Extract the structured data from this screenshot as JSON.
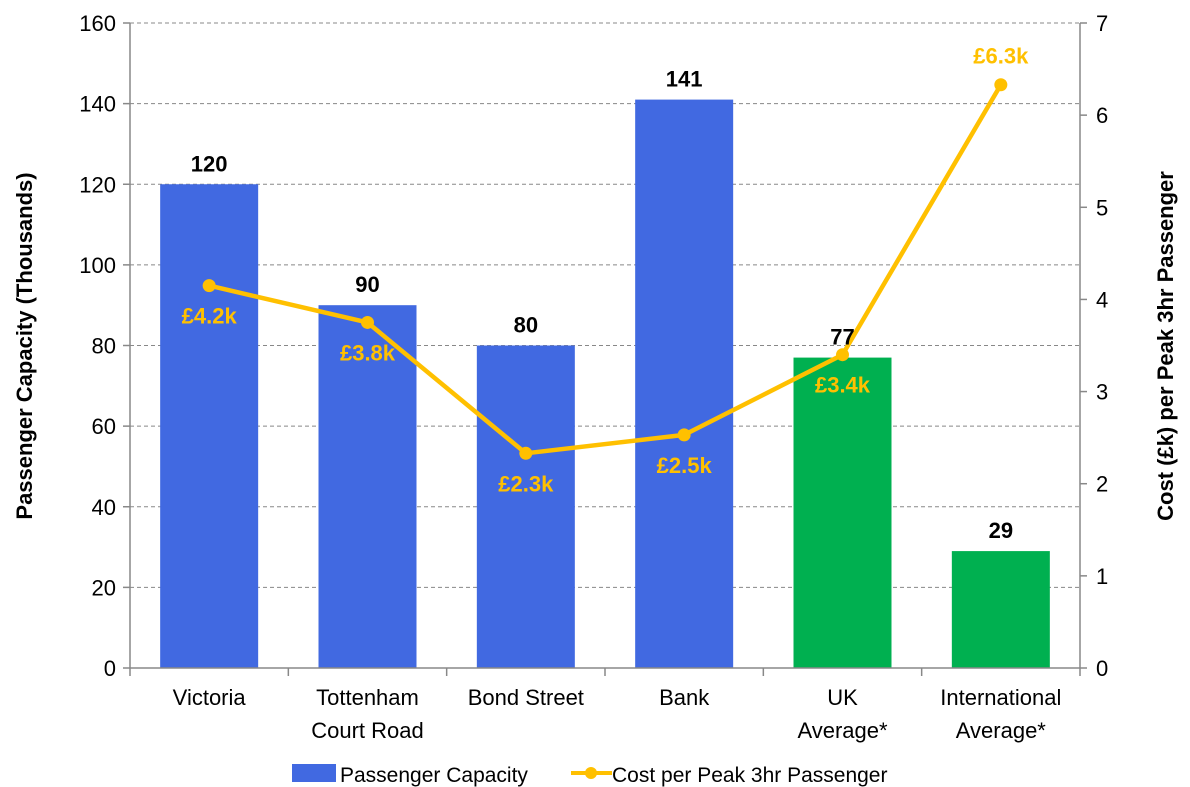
{
  "chart_data": {
    "type": "bar",
    "categories": [
      [
        "Victoria"
      ],
      [
        "Tottenham",
        "Court Road"
      ],
      [
        "Bond Street"
      ],
      [
        "Bank"
      ],
      [
        "UK",
        "Average*"
      ],
      [
        "International",
        "Average*"
      ]
    ],
    "series": [
      {
        "name": "Passenger Capacity",
        "type": "bar",
        "axis": "left",
        "values": [
          120,
          90,
          80,
          141,
          77,
          29
        ],
        "data_labels": [
          "120",
          "90",
          "80",
          "141",
          "77",
          "29"
        ],
        "colors": [
          "#4169E1",
          "#4169E1",
          "#4169E1",
          "#4169E1",
          "#00B050",
          "#00B050"
        ]
      },
      {
        "name": "Cost per Peak 3hr Passenger",
        "type": "line",
        "axis": "right",
        "values": [
          4.15,
          3.75,
          2.33,
          2.53,
          3.4,
          6.33
        ],
        "data_labels": [
          "£4.2k",
          "£3.8k",
          "£2.3k",
          "£2.5k",
          "£3.4k",
          "£6.3k"
        ],
        "color": "#FFC000"
      }
    ],
    "ylabel": "Passenger Capacity (Thousands)",
    "y2label": "Cost (£k) per Peak 3hr Passenger",
    "ylim": [
      0,
      160
    ],
    "y2lim": [
      0,
      7
    ],
    "yticks": [
      "0",
      "20",
      "40",
      "60",
      "80",
      "100",
      "120",
      "140",
      "160"
    ],
    "y2ticks": [
      "0",
      "1",
      "2",
      "3",
      "4",
      "5",
      "6",
      "7"
    ],
    "grid": "dashed horizontal",
    "legend_position": "bottom"
  }
}
